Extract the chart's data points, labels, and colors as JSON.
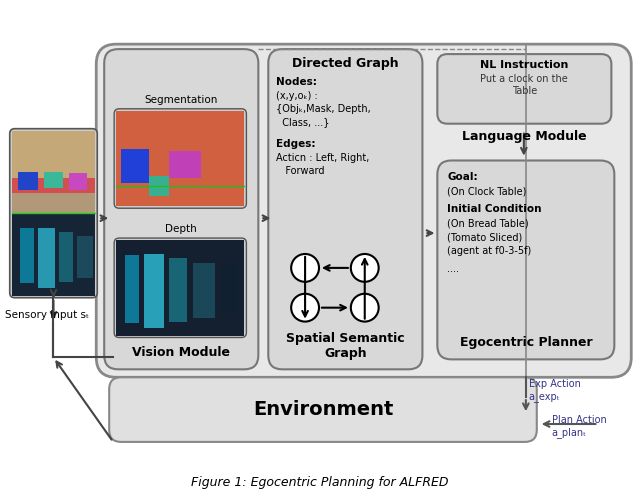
{
  "title": "Figure 1: Egocentric Planning for ALFRED",
  "bg": "#ffffff",
  "c_outer": "#e8e8e8",
  "c_mid": "#d8d8d8",
  "c_dark": "#cccccc",
  "c_edge": "#888888",
  "c_edge2": "#666666",
  "nl_bold": "NL Instruction",
  "nl_body": "Put a clock on the\nTable",
  "lang_lbl": "Language Module",
  "dg_title": "Directed Graph",
  "nodes_bold": "Nodes:",
  "nodes_body": "(x,y,oₖ) :\n{Objₖ,Mask, Depth,\n  Class, ...}",
  "edges_bold": "Edges:",
  "edges_body": "Acticn : Left, Right,\n   Forward",
  "ssg_lbl": "Spatial Semantic\nGraph",
  "vm_lbl": "Vision Module",
  "seg_lbl": "Segmentation",
  "dep_lbl": "Depth",
  "si_lbl": "Sensory Input sₜ",
  "exp_lbl": "Exp Action\na_expₜ",
  "plan_lbl": "Plan Action\na_planₜ",
  "env_lbl": "Environment",
  "goal_bold": "Goal:",
  "goal_body": "(On Clock Table)",
  "init_bold": "Initial Condition",
  "init_body": "(On Bread Table)\n(Tomato Sliced)\n(agent at f0-3-5f)",
  "dots": "....",
  "ego_bold": "Egocentric Planner"
}
